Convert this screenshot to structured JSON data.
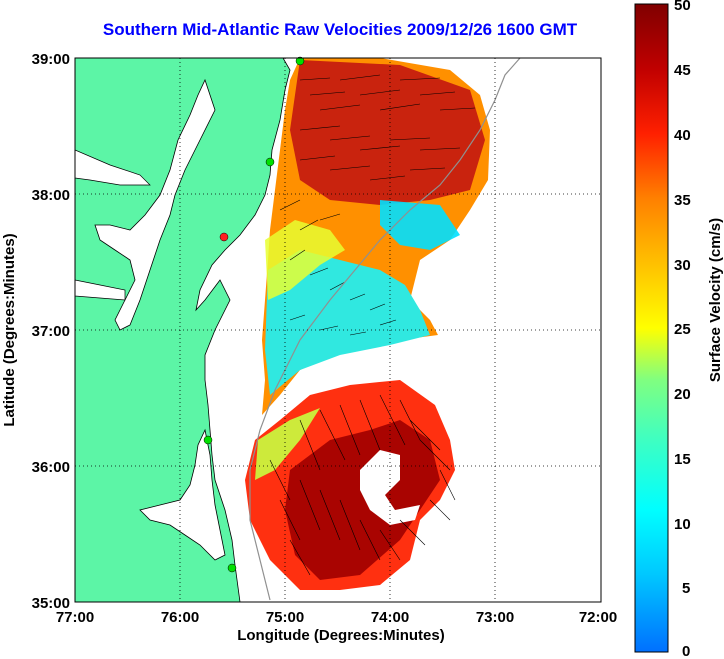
{
  "title": "Southern Mid-Atlantic Raw Velocities 2009/12/26 1600 GMT",
  "x_axis": {
    "label": "Longitude (Degrees:Minutes)",
    "ticks": [
      "77:00",
      "76:00",
      "75:00",
      "74:00",
      "73:00",
      "72:00"
    ]
  },
  "y_axis": {
    "label": "Latitude (Degrees:Minutes)",
    "ticks": [
      "39:00",
      "38:00",
      "37:00",
      "36:00",
      "35:00"
    ]
  },
  "colorbar": {
    "label": "Surface Velocity (cm/s)",
    "ticks": [
      "50",
      "45",
      "40",
      "35",
      "30",
      "25",
      "20",
      "15",
      "10",
      "5",
      "0"
    ],
    "colors": [
      "#0070ff",
      "#00c8ff",
      "#00ffff",
      "#40ffc0",
      "#80ff80",
      "#c0ff40",
      "#ffff00",
      "#ffc000",
      "#ff8000",
      "#ff4000",
      "#ff0000",
      "#c00000",
      "#800000"
    ]
  },
  "colors": {
    "land": "#5cf5a6",
    "title": "#0000ff",
    "station": "#00e000",
    "station_alert": "#ff2020"
  },
  "legend": {
    "colorbar_position": "right"
  }
}
